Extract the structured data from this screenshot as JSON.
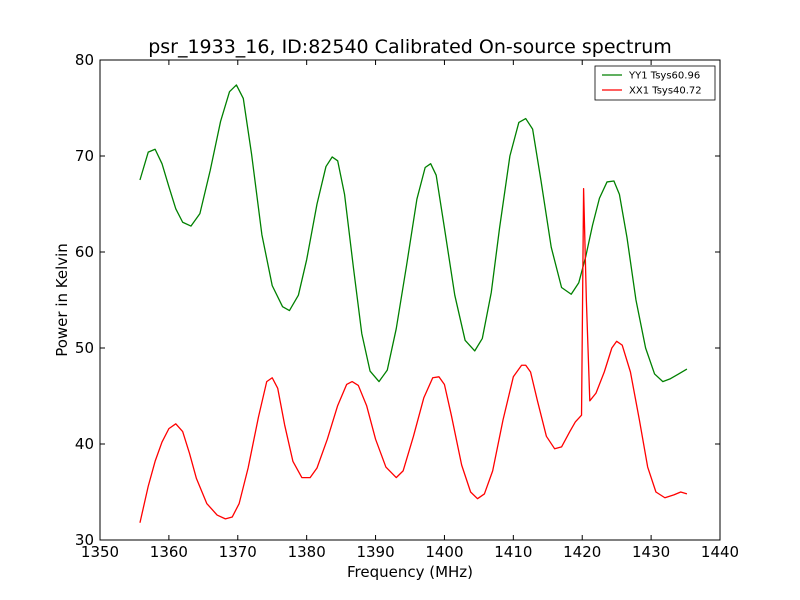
{
  "chart_data": {
    "type": "line",
    "title": "psr_1933_16, ID:82540 Calibrated On-source spectrum",
    "xlabel": "Frequency (MHz)",
    "ylabel": "Power in Kelvin",
    "xlim": [
      1350,
      1440
    ],
    "ylim": [
      30,
      80
    ],
    "xticks": [
      1350,
      1360,
      1370,
      1380,
      1390,
      1400,
      1410,
      1420,
      1430,
      1440
    ],
    "yticks": [
      30,
      40,
      50,
      60,
      70,
      80
    ],
    "xtick_labels": [
      "1350",
      "1360",
      "1370",
      "1380",
      "1390",
      "1400",
      "1410",
      "1420",
      "1430",
      "1440"
    ],
    "ytick_labels": [
      "30",
      "40",
      "50",
      "60",
      "70",
      "80"
    ],
    "grid": false,
    "legend_position": "top-right",
    "series": [
      {
        "name": "YY1 Tsys60.96",
        "color": "#008000",
        "x": [
          1355.8,
          1357.0,
          1358.0,
          1359.0,
          1360.0,
          1361.0,
          1362.0,
          1363.2,
          1364.5,
          1366.0,
          1367.5,
          1368.8,
          1369.8,
          1370.8,
          1372.0,
          1373.5,
          1375.0,
          1376.5,
          1377.5,
          1378.8,
          1380.0,
          1381.5,
          1382.8,
          1383.7,
          1384.5,
          1385.5,
          1386.8,
          1388.0,
          1389.2,
          1390.5,
          1391.7,
          1393.0,
          1394.5,
          1396.0,
          1397.2,
          1398.0,
          1398.8,
          1400.0,
          1401.5,
          1403.0,
          1404.4,
          1405.5,
          1406.8,
          1408.0,
          1409.5,
          1410.8,
          1411.8,
          1412.8,
          1414.0,
          1415.5,
          1417.0,
          1418.4,
          1419.5,
          1420.5,
          1421.5,
          1422.5,
          1423.6,
          1424.6,
          1425.4,
          1426.5,
          1427.8,
          1429.2,
          1430.5,
          1431.7,
          1432.8,
          1434.0,
          1435.2
        ],
        "y": [
          67.5,
          70.4,
          70.7,
          69.2,
          66.8,
          64.5,
          63.1,
          62.7,
          64.0,
          68.5,
          73.6,
          76.7,
          77.4,
          76.0,
          70.2,
          61.8,
          56.5,
          54.3,
          53.9,
          55.5,
          59.2,
          65.0,
          68.9,
          69.9,
          69.5,
          66.0,
          58.3,
          51.5,
          47.6,
          46.5,
          47.7,
          52.0,
          58.6,
          65.5,
          68.8,
          69.2,
          68.0,
          62.5,
          55.5,
          50.8,
          49.7,
          51.0,
          55.8,
          62.5,
          70.0,
          73.5,
          73.9,
          72.8,
          67.5,
          60.5,
          56.3,
          55.6,
          56.8,
          59.5,
          62.8,
          65.6,
          67.3,
          67.4,
          66.0,
          61.5,
          55.0,
          50.0,
          47.3,
          46.5,
          46.8,
          47.3,
          47.8
        ]
      },
      {
        "name": "XX1 Tsys40.72",
        "color": "#ff0000",
        "x": [
          1355.8,
          1357.0,
          1358.0,
          1359.0,
          1360.0,
          1361.0,
          1362.0,
          1363.0,
          1364.0,
          1365.5,
          1367.0,
          1368.2,
          1369.2,
          1370.2,
          1371.5,
          1373.0,
          1374.2,
          1375.0,
          1375.8,
          1376.8,
          1378.0,
          1379.3,
          1380.5,
          1381.5,
          1383.0,
          1384.5,
          1385.8,
          1386.6,
          1387.5,
          1388.7,
          1390.0,
          1391.5,
          1393.0,
          1394.0,
          1395.5,
          1397.0,
          1398.3,
          1399.2,
          1400.0,
          1401.0,
          1402.5,
          1403.8,
          1404.8,
          1405.8,
          1407.0,
          1408.5,
          1410.0,
          1411.2,
          1411.8,
          1412.5,
          1413.5,
          1414.8,
          1416.0,
          1417.0,
          1418.2,
          1419.0,
          1419.9,
          1420.2,
          1420.6,
          1421.1,
          1422.0,
          1423.2,
          1424.3,
          1425.0,
          1425.8,
          1427.0,
          1428.3,
          1429.5,
          1430.7,
          1432.0,
          1433.3,
          1434.3,
          1435.2
        ],
        "y": [
          31.8,
          35.6,
          38.2,
          40.2,
          41.6,
          42.1,
          41.3,
          39.0,
          36.4,
          33.8,
          32.6,
          32.2,
          32.4,
          33.8,
          37.5,
          42.8,
          46.5,
          46.9,
          45.8,
          42.0,
          38.2,
          36.5,
          36.5,
          37.5,
          40.5,
          44.0,
          46.2,
          46.5,
          46.1,
          44.0,
          40.5,
          37.6,
          36.5,
          37.2,
          40.8,
          44.8,
          46.9,
          47.0,
          46.2,
          43.0,
          37.8,
          35.0,
          34.3,
          34.8,
          37.2,
          42.5,
          47.0,
          48.2,
          48.2,
          47.5,
          44.5,
          40.8,
          39.5,
          39.7,
          41.3,
          42.3,
          43.0,
          66.6,
          55.0,
          44.5,
          45.3,
          47.5,
          50.0,
          50.7,
          50.3,
          47.5,
          42.5,
          37.6,
          35.0,
          34.4,
          34.7,
          35.0,
          34.8
        ]
      }
    ]
  }
}
